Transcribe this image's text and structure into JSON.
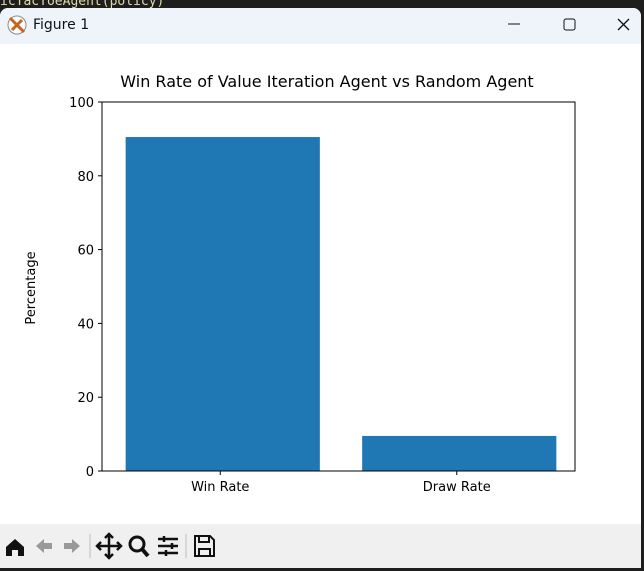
{
  "window": {
    "title": "Figure 1",
    "background_code": "icTacToeAgent(policy)"
  },
  "chart_data": {
    "type": "bar",
    "title": "Win Rate of Value Iteration Agent vs Random Agent",
    "y_label": "Percentage",
    "categories": [
      "Win Rate",
      "Draw Rate"
    ],
    "values": [
      90.5,
      9.5
    ],
    "color": "#1f77b4",
    "ylim": [
      0,
      100
    ],
    "yticks": [
      0,
      20,
      40,
      60,
      80,
      100
    ]
  }
}
